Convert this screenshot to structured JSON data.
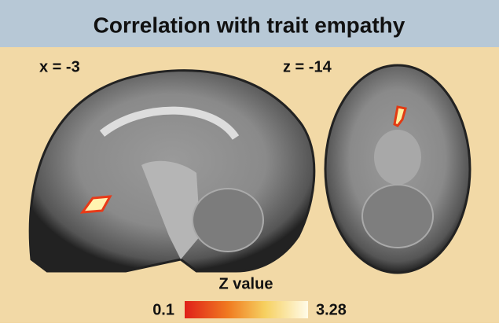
{
  "header": {
    "title": "Correlation with trait empathy"
  },
  "panels": [
    {
      "label": "x = -3"
    },
    {
      "label": "z = -14"
    }
  ],
  "colorbar": {
    "label": "Z value",
    "min": 0.1,
    "max": 3.28
  }
}
